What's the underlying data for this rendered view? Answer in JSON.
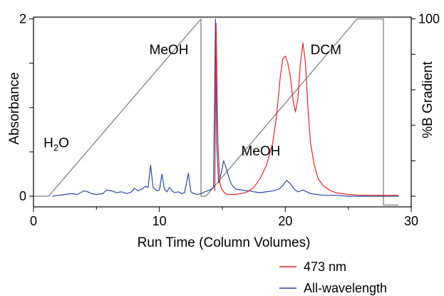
{
  "chart_data": {
    "type": "line",
    "title": "",
    "xlabel": "Run Time (Column Volumes)",
    "ylabel": "Absorbance",
    "y2label": "%B Gradient",
    "xlim": [
      0,
      30
    ],
    "ylim": [
      -0.12,
      2.02
    ],
    "y2lim": [
      -6,
      101
    ],
    "xticks": [
      "0",
      "10",
      "20",
      "30"
    ],
    "yticks": [
      "0",
      "2"
    ],
    "y2ticks": [
      "100"
    ],
    "grid": false,
    "legend_position": "bottom-right",
    "annotations": [
      {
        "text": "H",
        "sub": "2",
        "tail": "O",
        "x": 0.8,
        "y": 0.55
      },
      {
        "text": "MeOH",
        "x": 9.2,
        "y": 1.6
      },
      {
        "text": "MeOH",
        "x": 16.5,
        "y": 0.46
      },
      {
        "text": "DCM",
        "x": 22.0,
        "y": 1.6
      }
    ],
    "series": [
      {
        "name": "473 nm",
        "color": "#e8232a",
        "x": [
          14.4,
          14.5,
          14.65,
          14.8,
          14.95,
          15.1,
          15.25,
          15.4,
          15.5,
          16.0,
          16.5,
          17.0,
          17.5,
          18.0,
          18.5,
          19.0,
          19.3,
          19.6,
          19.8,
          20.0,
          20.2,
          20.4,
          20.6,
          20.8,
          21.0,
          21.2,
          21.4,
          21.6,
          21.8,
          22.0,
          22.3,
          22.6,
          23.0,
          23.5,
          24.0,
          24.5,
          25.0,
          26.0,
          27.0,
          28.0,
          29.0
        ],
        "y": [
          0.06,
          1.95,
          0.6,
          0.15,
          0.08,
          0.05,
          0.03,
          0.02,
          0.02,
          0.02,
          0.03,
          0.05,
          0.1,
          0.2,
          0.35,
          0.6,
          0.9,
          1.35,
          1.55,
          1.58,
          1.5,
          1.35,
          1.1,
          0.95,
          1.1,
          1.5,
          1.73,
          1.5,
          1.0,
          0.6,
          0.35,
          0.2,
          0.12,
          0.07,
          0.04,
          0.03,
          0.02,
          0.01,
          0.01,
          0.01,
          0.01
        ]
      },
      {
        "name": "All-wavelength",
        "color": "#2b4aa6",
        "x": [
          1.5,
          2.0,
          2.5,
          3.0,
          3.5,
          4.0,
          4.3,
          4.6,
          5.0,
          5.5,
          5.8,
          6.2,
          6.6,
          7.0,
          7.4,
          7.8,
          8.0,
          8.3,
          8.6,
          8.9,
          9.1,
          9.3,
          9.5,
          9.8,
          10.0,
          10.2,
          10.4,
          10.6,
          10.8,
          11.0,
          11.2,
          11.5,
          11.8,
          12.0,
          12.3,
          12.5,
          12.7,
          13.0,
          13.3,
          13.6,
          14.0,
          14.3,
          14.45,
          14.55,
          14.7,
          14.9,
          15.1,
          15.3,
          15.5,
          15.7,
          15.9,
          16.1,
          16.5,
          17.0,
          17.2,
          17.5,
          18.0,
          18.5,
          19.0,
          19.5,
          19.8,
          20.1,
          20.4,
          20.7,
          21.0,
          21.4,
          21.7,
          22.0,
          22.5,
          23.0,
          24.0,
          25.0,
          26.0,
          27.0,
          28.0,
          29.0
        ],
        "y": [
          0.0,
          0.01,
          0.02,
          0.03,
          0.02,
          0.06,
          0.05,
          0.03,
          0.02,
          0.03,
          0.07,
          0.06,
          0.04,
          0.05,
          0.03,
          0.05,
          0.09,
          0.06,
          0.08,
          0.11,
          0.1,
          0.35,
          0.1,
          0.06,
          0.07,
          0.25,
          0.08,
          0.05,
          0.1,
          0.06,
          0.04,
          0.05,
          0.03,
          0.04,
          0.26,
          0.05,
          0.03,
          0.02,
          0.03,
          0.05,
          0.07,
          0.1,
          2.0,
          0.6,
          0.15,
          0.25,
          0.4,
          0.32,
          0.22,
          0.14,
          0.1,
          0.08,
          0.07,
          0.06,
          0.06,
          0.05,
          0.04,
          0.05,
          0.06,
          0.08,
          0.12,
          0.18,
          0.14,
          0.08,
          0.05,
          0.07,
          0.05,
          0.03,
          0.02,
          0.01,
          0.01,
          0.0,
          0.0,
          0.0,
          0.0,
          0.0
        ]
      },
      {
        "name": "",
        "axis": "right",
        "color": "#808080",
        "x": [
          0.0,
          1.2,
          13.3,
          13.3,
          13.7,
          25.7,
          27.8,
          27.8,
          29.0
        ],
        "y": [
          0,
          0,
          100,
          0,
          0,
          100,
          100,
          -5,
          -5
        ]
      }
    ]
  }
}
